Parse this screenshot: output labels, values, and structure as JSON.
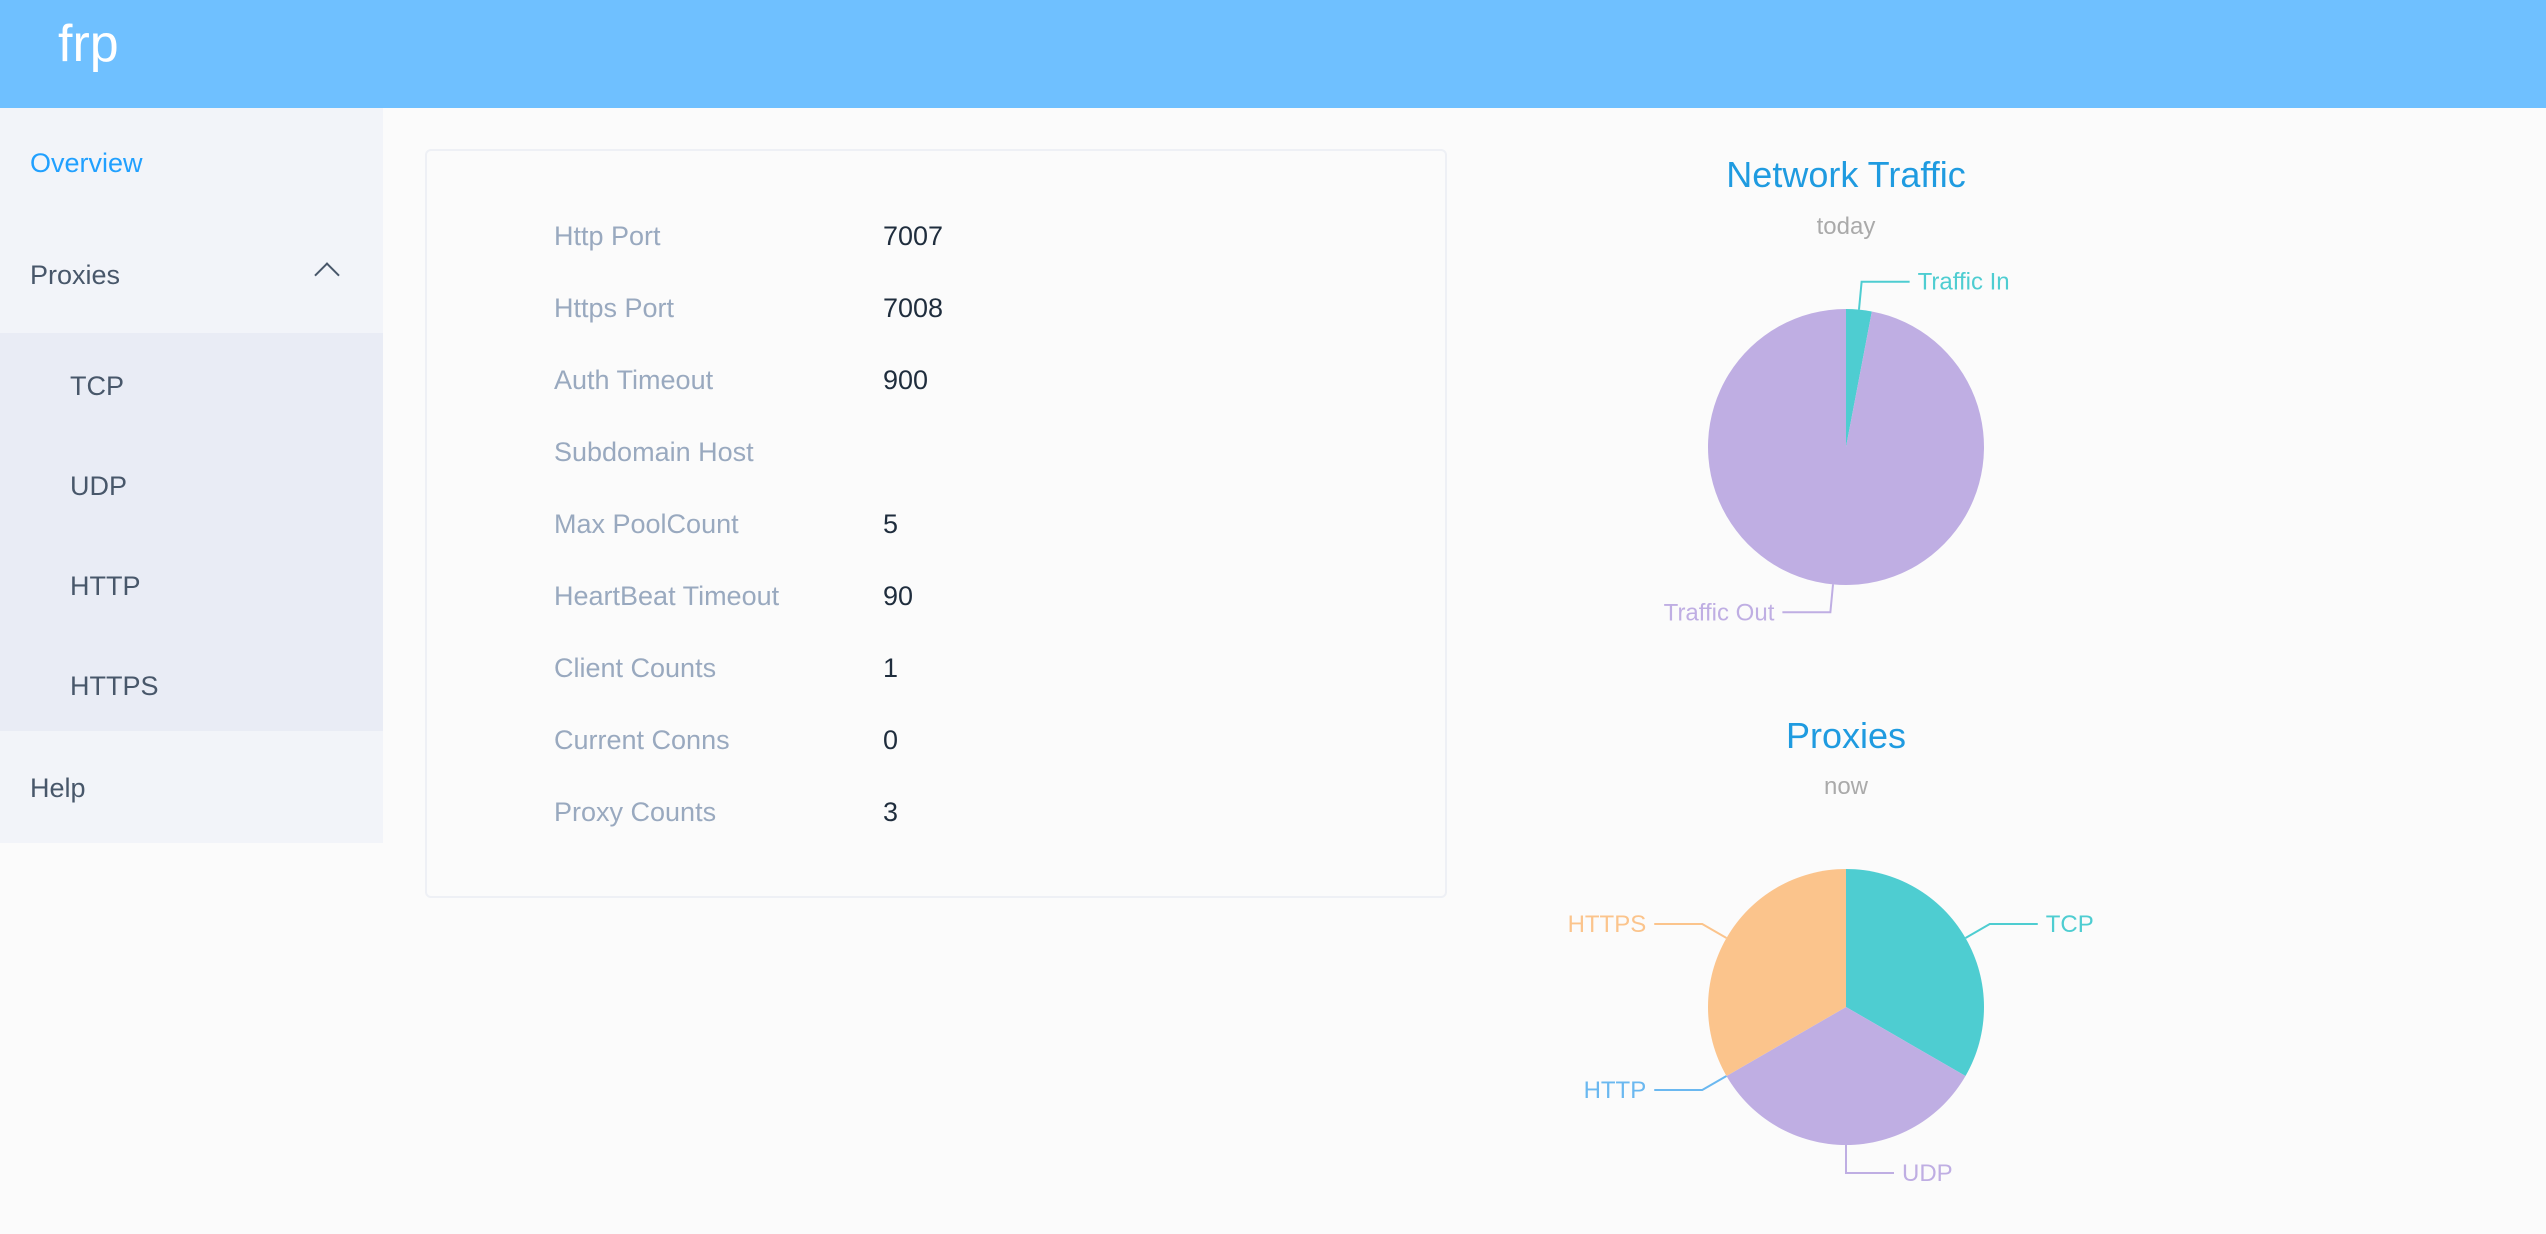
{
  "header": {
    "logo": "frp"
  },
  "sidebar": {
    "overview": "Overview",
    "proxies": "Proxies",
    "sub_items": [
      "TCP",
      "UDP",
      "HTTP",
      "HTTPS"
    ],
    "help": "Help"
  },
  "server_info": [
    {
      "label": "Http Port",
      "value": "7007"
    },
    {
      "label": "Https Port",
      "value": "7008"
    },
    {
      "label": "Auth Timeout",
      "value": "900"
    },
    {
      "label": "Subdomain Host",
      "value": ""
    },
    {
      "label": "Max PoolCount",
      "value": "5"
    },
    {
      "label": "HeartBeat Timeout",
      "value": "90"
    },
    {
      "label": "Client Counts",
      "value": "1"
    },
    {
      "label": "Current Conns",
      "value": "0"
    },
    {
      "label": "Proxy Counts",
      "value": "3"
    }
  ],
  "chart_data": [
    {
      "type": "pie",
      "title": "Network Traffic",
      "subtitle": "today",
      "slices": [
        {
          "name": "Traffic In",
          "value": 3,
          "color": "#4ecdd1"
        },
        {
          "name": "Traffic Out",
          "value": 97,
          "color": "#bfaee3"
        }
      ]
    },
    {
      "type": "pie",
      "title": "Proxies",
      "subtitle": "now",
      "slices": [
        {
          "name": "TCP",
          "value": 1,
          "color": "#4ecdd1"
        },
        {
          "name": "UDP",
          "value": 1,
          "color": "#bfaee3"
        },
        {
          "name": "HTTP",
          "value": 0,
          "color": "#6ab8f0"
        },
        {
          "name": "HTTPS",
          "value": 1,
          "color": "#fbc48c"
        }
      ]
    }
  ]
}
